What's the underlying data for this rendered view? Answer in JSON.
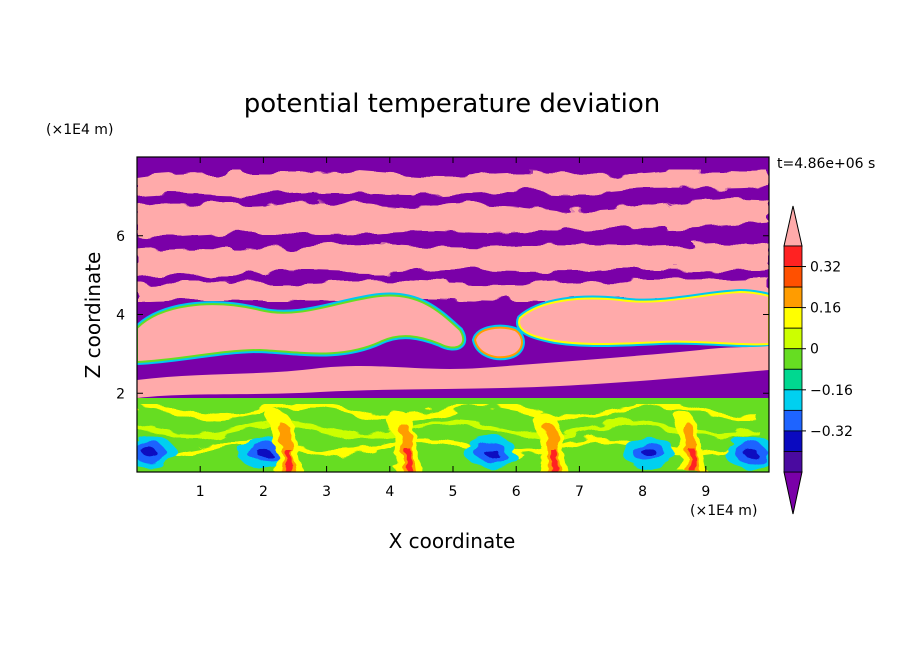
{
  "chart_data": {
    "type": "heatmap",
    "title": "potential temperature deviation",
    "xlabel": "X coordinate",
    "ylabel": "Z coordinate",
    "x_unit": "(×1E4 m)",
    "y_unit": "(×1E4 m)",
    "time_label": "t=4.86e+06 s",
    "xlim": [
      0,
      10
    ],
    "ylim": [
      0,
      8
    ],
    "x_ticks": [
      "1",
      "2",
      "3",
      "4",
      "5",
      "6",
      "7",
      "8",
      "9"
    ],
    "y_ticks": [
      "2",
      "4",
      "6"
    ],
    "colorbar": {
      "labels": [
        "0.32",
        "0.16",
        "0",
        "−0.16",
        "−0.32"
      ],
      "colors": [
        "#7a00a8",
        "#4a0aa0",
        "#0a0ac0",
        "#1e64ff",
        "#00d0f0",
        "#00d890",
        "#66dd22",
        "#ccff00",
        "#ffff00",
        "#ff9c00",
        "#ff5000",
        "#ff2222",
        "#ffaaaa"
      ]
    },
    "regions": {
      "upper_layer": "alternating pink (positive, > 0.4) and purple (negative, < -0.4) bands from z ~ 2 to 8",
      "boundary_layer": "mixed green/yellow/red/blue convective cells from z ~ 0 to 1.8",
      "warm_plumes_x": [
        2.4,
        4.3,
        6.6,
        8.8
      ],
      "cold_cores_x": [
        0.2,
        2.0,
        5.6,
        8.1,
        9.7
      ]
    }
  }
}
